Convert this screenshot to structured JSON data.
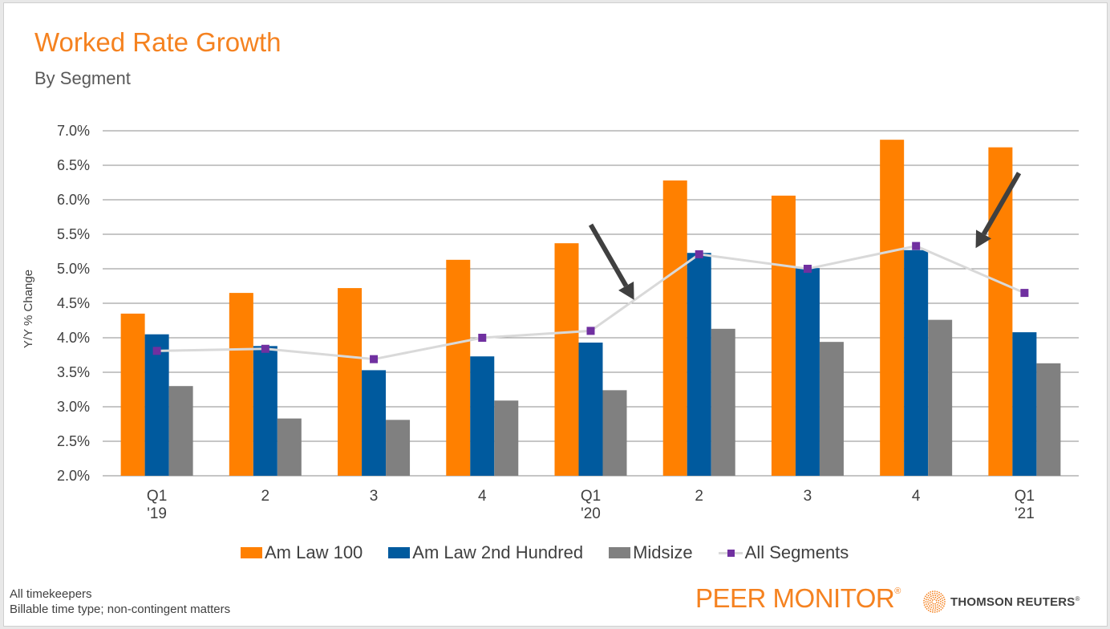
{
  "header": {
    "title": "Worked Rate Growth",
    "subtitle": "By Segment"
  },
  "colors": {
    "title": "#f58220",
    "am_law_100": "#ff8000",
    "am_law_2nd_hundred": "#005a9e",
    "midsize": "#808080",
    "all_segments_line": "#d9d9d9",
    "all_segments_marker": "#7030a0",
    "annotation_arrow": "#404040"
  },
  "chart_data": {
    "type": "bar",
    "title": "Worked Rate Growth",
    "subtitle": "By Segment",
    "xlabel": "",
    "ylabel": "Y/Y % Change",
    "ylim": [
      2.0,
      7.0
    ],
    "y_ticks": [
      "2.0%",
      "2.5%",
      "3.0%",
      "3.5%",
      "4.0%",
      "4.5%",
      "5.0%",
      "5.5%",
      "6.0%",
      "6.5%",
      "7.0%"
    ],
    "grid": true,
    "legend_position": "bottom",
    "categories": [
      {
        "line1": "Q1",
        "line2": "'19"
      },
      {
        "line1": "2",
        "line2": ""
      },
      {
        "line1": "3",
        "line2": ""
      },
      {
        "line1": "4",
        "line2": ""
      },
      {
        "line1": "Q1",
        "line2": "'20"
      },
      {
        "line1": "2",
        "line2": ""
      },
      {
        "line1": "3",
        "line2": ""
      },
      {
        "line1": "4",
        "line2": ""
      },
      {
        "line1": "Q1",
        "line2": "'21"
      }
    ],
    "series": [
      {
        "name": "Am Law 100",
        "type": "bar",
        "color_key": "am_law_100",
        "values": [
          4.35,
          4.65,
          4.72,
          5.13,
          5.37,
          6.28,
          6.06,
          6.87,
          6.76
        ]
      },
      {
        "name": "Am Law 2nd Hundred",
        "type": "bar",
        "color_key": "am_law_2nd_hundred",
        "values": [
          4.05,
          3.88,
          3.53,
          3.73,
          3.93,
          5.23,
          5.01,
          5.27,
          4.08
        ]
      },
      {
        "name": "Midsize",
        "type": "bar",
        "color_key": "midsize",
        "values": [
          3.3,
          2.83,
          2.81,
          3.09,
          3.24,
          4.13,
          3.94,
          4.26,
          3.63
        ]
      },
      {
        "name": "All Segments",
        "type": "line",
        "color_key": "all_segments_marker",
        "values": [
          3.81,
          3.84,
          3.69,
          4.0,
          4.1,
          5.21,
          5.0,
          5.33,
          4.65
        ]
      }
    ],
    "annotations": [
      {
        "type": "arrow",
        "points_to_category_index": 4.4,
        "points_to_value": 4.55,
        "direction": "down-right"
      },
      {
        "type": "arrow",
        "points_to_category_index": 7.55,
        "points_to_value": 5.3,
        "direction": "down-left"
      }
    ]
  },
  "legend": {
    "items": [
      "Am Law 100",
      "Am Law 2nd Hundred",
      "Midsize",
      "All Segments"
    ]
  },
  "footnote": {
    "line1": "All timekeepers",
    "line2": "Billable time type; non-contingent matters"
  },
  "branding": {
    "product": "PEER MONITOR",
    "product_mark": "®",
    "company": "THOMSON REUTERS",
    "company_mark": "®"
  }
}
